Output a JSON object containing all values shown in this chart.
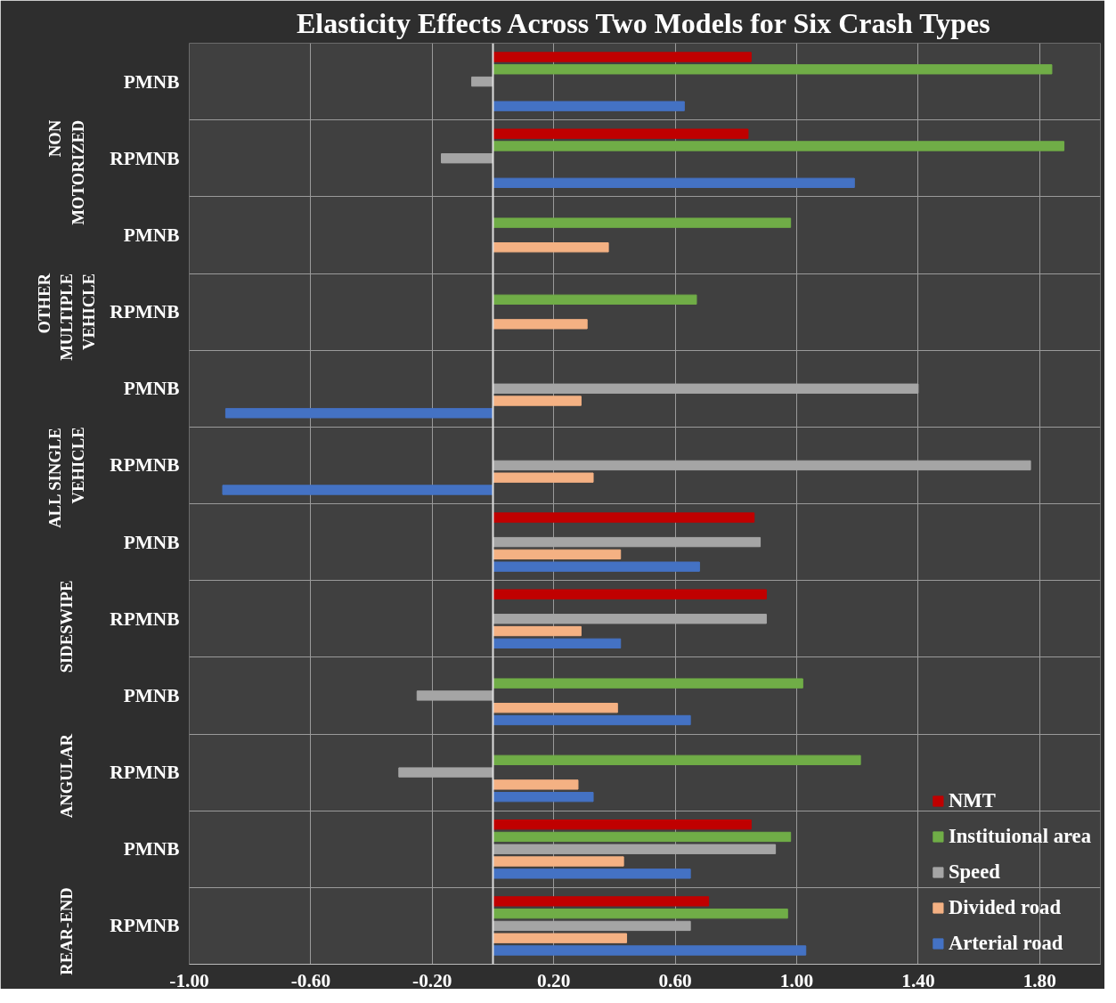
{
  "chart_data": {
    "type": "bar",
    "orientation": "horizontal",
    "title": "Elasticity Effects Across Two Models for Six Crash Types",
    "categories": [
      "PMNB",
      "RPMNB",
      "PMNB",
      "RPMNB",
      "PMNB",
      "RPMNB",
      "PMNB",
      "RPMNB",
      "PMNB",
      "RPMNB",
      "PMNB",
      "RPMNB"
    ],
    "annotations": [
      "NON\nMOTORIZED",
      "OTHER\nMULTIPLE\nVEHICLE",
      "ALL SINGLE\nVEHICLE",
      "SIDESWIPE",
      "ANGULAR",
      "REAR-END"
    ],
    "series": [
      {
        "name": "NMT",
        "color": "#c00000",
        "values": [
          0.85,
          0.84,
          null,
          null,
          null,
          null,
          0.86,
          0.9,
          null,
          null,
          0.85,
          0.71
        ]
      },
      {
        "name": "Instituional area",
        "color": "#70ad47",
        "values": [
          1.84,
          1.88,
          0.98,
          0.67,
          null,
          null,
          null,
          null,
          1.02,
          1.21,
          0.98,
          0.97
        ]
      },
      {
        "name": "Speed",
        "color": "#a5a5a5",
        "values": [
          -0.07,
          -0.17,
          null,
          null,
          1.4,
          1.77,
          0.88,
          0.9,
          -0.25,
          -0.31,
          0.93,
          0.65
        ]
      },
      {
        "name": "Divided road",
        "color": "#f4b183",
        "values": [
          null,
          null,
          0.38,
          0.31,
          0.29,
          0.33,
          0.42,
          0.29,
          0.41,
          0.28,
          0.43,
          0.44
        ]
      },
      {
        "name": "Arterial road",
        "color": "#4472c4",
        "values": [
          0.63,
          1.19,
          null,
          null,
          -0.88,
          -0.89,
          0.68,
          0.42,
          0.65,
          0.33,
          0.65,
          1.03
        ]
      }
    ],
    "xlim": [
      -1.0,
      2.0
    ],
    "xticks": [
      {
        "value": -1.0,
        "label": "-1.00"
      },
      {
        "value": -0.6,
        "label": "-0.60"
      },
      {
        "value": -0.2,
        "label": "-0.20"
      },
      {
        "value": 0.2,
        "label": "0.20"
      },
      {
        "value": 0.6,
        "label": "0.60"
      },
      {
        "value": 1.0,
        "label": "1.00"
      },
      {
        "value": 1.4,
        "label": "1.40"
      },
      {
        "value": 1.8,
        "label": "1.80"
      }
    ],
    "grid": true,
    "legend": "bottom right"
  }
}
